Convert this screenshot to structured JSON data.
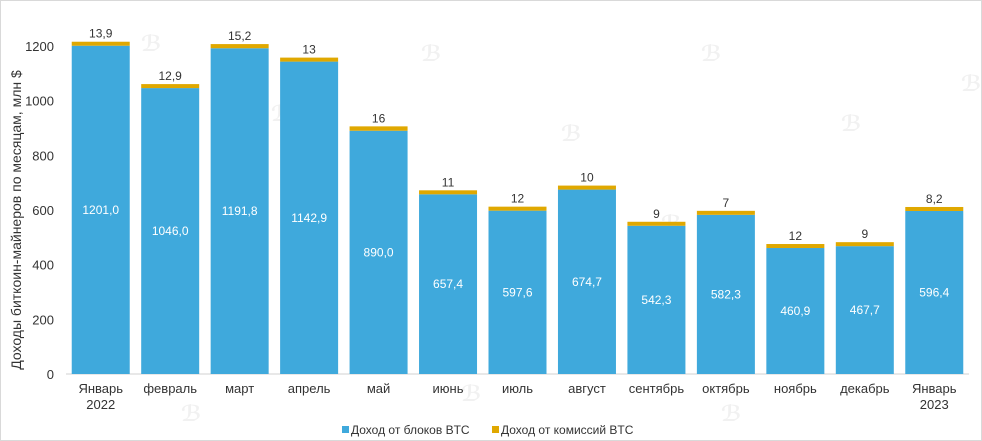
{
  "chart_data": {
    "type": "bar",
    "stacked": true,
    "categories": [
      [
        "Январь",
        "2022"
      ],
      [
        "февраль"
      ],
      [
        "март"
      ],
      [
        "апрель"
      ],
      [
        "май"
      ],
      [
        "июнь"
      ],
      [
        "июль"
      ],
      [
        "август"
      ],
      [
        "сентябрь"
      ],
      [
        "октябрь"
      ],
      [
        "ноябрь"
      ],
      [
        "декабрь"
      ],
      [
        "Январь",
        "2023"
      ]
    ],
    "series": [
      {
        "name": "Доход от блоков BTC",
        "color": "#3fa9dc",
        "values": [
          1201.0,
          1046.0,
          1191.8,
          1142.9,
          890.0,
          657.4,
          597.6,
          674.7,
          542.3,
          582.3,
          460.9,
          467.7,
          596.4
        ],
        "labels": [
          "1201,0",
          "1046,0",
          "1191,8",
          "1142,9",
          "890,0",
          "657,4",
          "597,6",
          "674,7",
          "542,3",
          "582,3",
          "460,9",
          "467,7",
          "596,4"
        ]
      },
      {
        "name": "Доход от комиссий BTC",
        "color": "#e0a800",
        "values": [
          13.9,
          12.9,
          15.2,
          13,
          16,
          11,
          12,
          10,
          9,
          7,
          12,
          9,
          8.2
        ],
        "labels": [
          "13,9",
          "12,9",
          "15,2",
          "13",
          "16",
          "11",
          "12",
          "10",
          "9",
          "7",
          "12",
          "9",
          "8,2"
        ]
      }
    ],
    "ylabel": "Доходы биткоин-майнеров по месяцам, млн $",
    "ylim": [
      0,
      1200
    ],
    "yticks": [
      0,
      200,
      400,
      600,
      800,
      1000,
      1200
    ],
    "grid": false,
    "legend_position": "bottom"
  }
}
